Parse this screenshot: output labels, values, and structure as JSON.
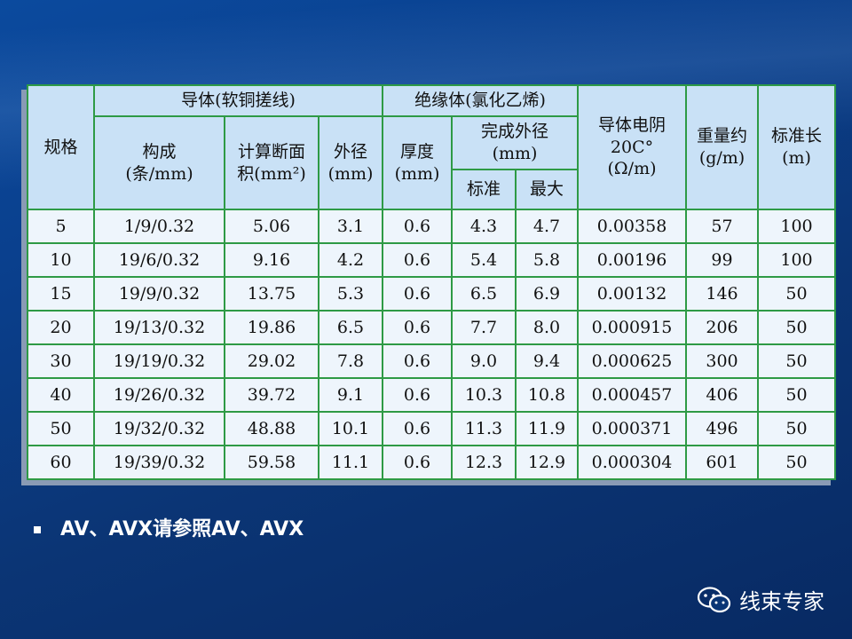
{
  "table": {
    "header": {
      "spec": "规格",
      "group1": "导体(软铜搓线)",
      "group2": "绝缘体(氯化乙烯)",
      "structure": "构成\n(条/mm)",
      "area": "计算断面\n积(mm²)",
      "od": "外径\n(mm)",
      "thickness": "厚度\n(mm)",
      "finished": "完成外径\n(mm)",
      "std": "标准",
      "max": "最大",
      "resistance": "导体电阴\n20C°\n(Ω/m)",
      "weight": "重量约\n(g/m)",
      "length": "标准长\n(m)"
    },
    "rows": [
      [
        "5",
        "1/9/0.32",
        "5.06",
        "3.1",
        "0.6",
        "4.3",
        "4.7",
        "0.00358",
        "57",
        "100"
      ],
      [
        "10",
        "19/6/0.32",
        "9.16",
        "4.2",
        "0.6",
        "5.4",
        "5.8",
        "0.00196",
        "99",
        "100"
      ],
      [
        "15",
        "19/9/0.32",
        "13.75",
        "5.3",
        "0.6",
        "6.5",
        "6.9",
        "0.00132",
        "146",
        "50"
      ],
      [
        "20",
        "19/13/0.32",
        "19.86",
        "6.5",
        "0.6",
        "7.7",
        "8.0",
        "0.000915",
        "206",
        "50"
      ],
      [
        "30",
        "19/19/0.32",
        "29.02",
        "7.8",
        "0.6",
        "9.0",
        "9.4",
        "0.000625",
        "300",
        "50"
      ],
      [
        "40",
        "19/26/0.32",
        "39.72",
        "9.1",
        "0.6",
        "10.3",
        "10.8",
        "0.000457",
        "406",
        "50"
      ],
      [
        "50",
        "19/32/0.32",
        "48.88",
        "10.1",
        "0.6",
        "11.3",
        "11.9",
        "0.000371",
        "496",
        "50"
      ],
      [
        "60",
        "19/39/0.32",
        "59.58",
        "11.1",
        "0.6",
        "12.3",
        "12.9",
        "0.000304",
        "601",
        "50"
      ]
    ]
  },
  "note": "AV、AVX请参照AV、AVX",
  "watermark": "线束专家"
}
